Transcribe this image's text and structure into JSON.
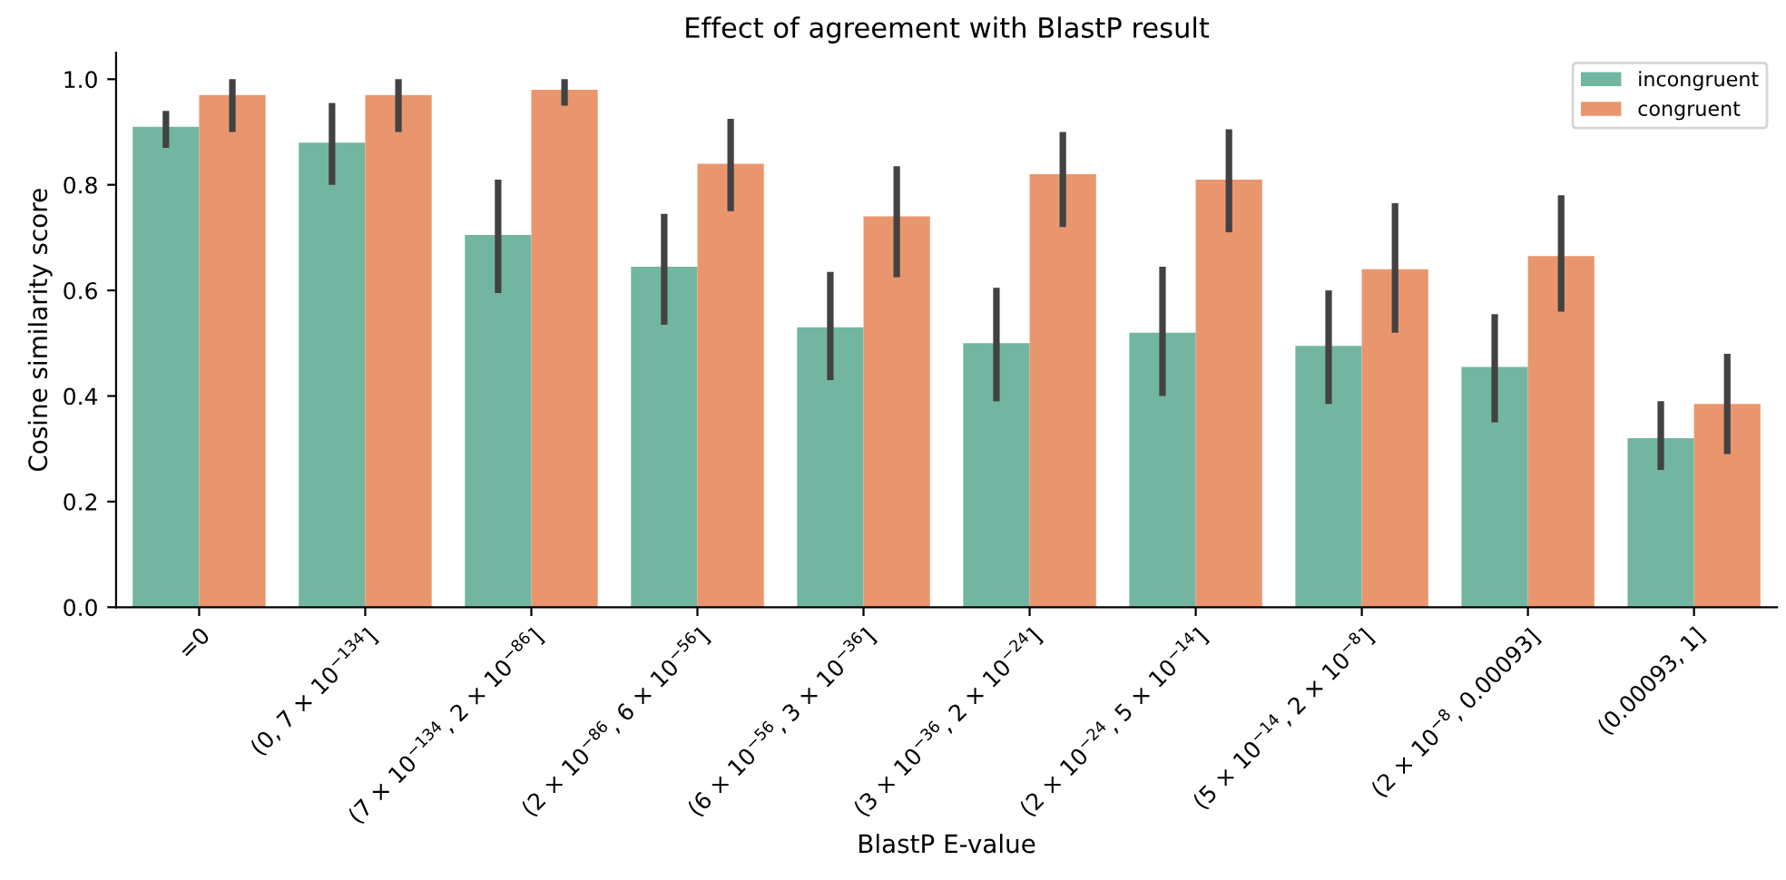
{
  "chart_data": {
    "type": "bar",
    "title": "Effect of agreement with BlastP result",
    "xlabel": "BlastP E-value",
    "ylabel": "Cosine similarity score",
    "categories": [
      "=0",
      "(0, 7 × 10$^{−134}$]",
      "(7 × 10$^{−134}$, 2 × 10$^{−86}$]",
      "(2 × 10$^{−86}$, 6 × 10$^{−56}$]",
      "(6 × 10$^{−56}$, 3 × 10$^{−36}$]",
      "(3 × 10$^{−36}$, 2 × 10$^{−24}$]",
      "(2 × 10$^{−24}$, 5 × 10$^{−14}$]",
      "(5 × 10$^{−14}$, 2 × 10$^{−8}$]",
      "(2 × 10$^{−8}$, 0.00093]",
      "(0.00093, 1]"
    ],
    "series": [
      {
        "name": "incongruent",
        "color": "#72b6a1",
        "values": [
          0.91,
          0.88,
          0.705,
          0.645,
          0.53,
          0.5,
          0.52,
          0.495,
          0.455,
          0.32
        ],
        "errors": [
          [
            0.87,
            0.94
          ],
          [
            0.8,
            0.955
          ],
          [
            0.595,
            0.81
          ],
          [
            0.535,
            0.745
          ],
          [
            0.43,
            0.635
          ],
          [
            0.39,
            0.605
          ],
          [
            0.4,
            0.645
          ],
          [
            0.385,
            0.6
          ],
          [
            0.35,
            0.555
          ],
          [
            0.26,
            0.39
          ]
        ]
      },
      {
        "name": "congruent",
        "color": "#e9966f",
        "values": [
          0.97,
          0.97,
          0.98,
          0.84,
          0.74,
          0.82,
          0.81,
          0.64,
          0.665,
          0.385
        ],
        "errors": [
          [
            0.9,
            1.0
          ],
          [
            0.9,
            1.0
          ],
          [
            0.95,
            1.0
          ],
          [
            0.75,
            0.925
          ],
          [
            0.625,
            0.835
          ],
          [
            0.72,
            0.9
          ],
          [
            0.71,
            0.905
          ],
          [
            0.52,
            0.765
          ],
          [
            0.56,
            0.78
          ],
          [
            0.29,
            0.48
          ]
        ]
      }
    ],
    "ylim": [
      0,
      1.05
    ],
    "yticks": [
      {
        "value": 0,
        "label": "0.0"
      },
      0.2,
      0.4,
      0.6,
      0.8,
      {
        "value": 1,
        "label": "1.0"
      }
    ],
    "grid": false,
    "legend": "top right"
  }
}
